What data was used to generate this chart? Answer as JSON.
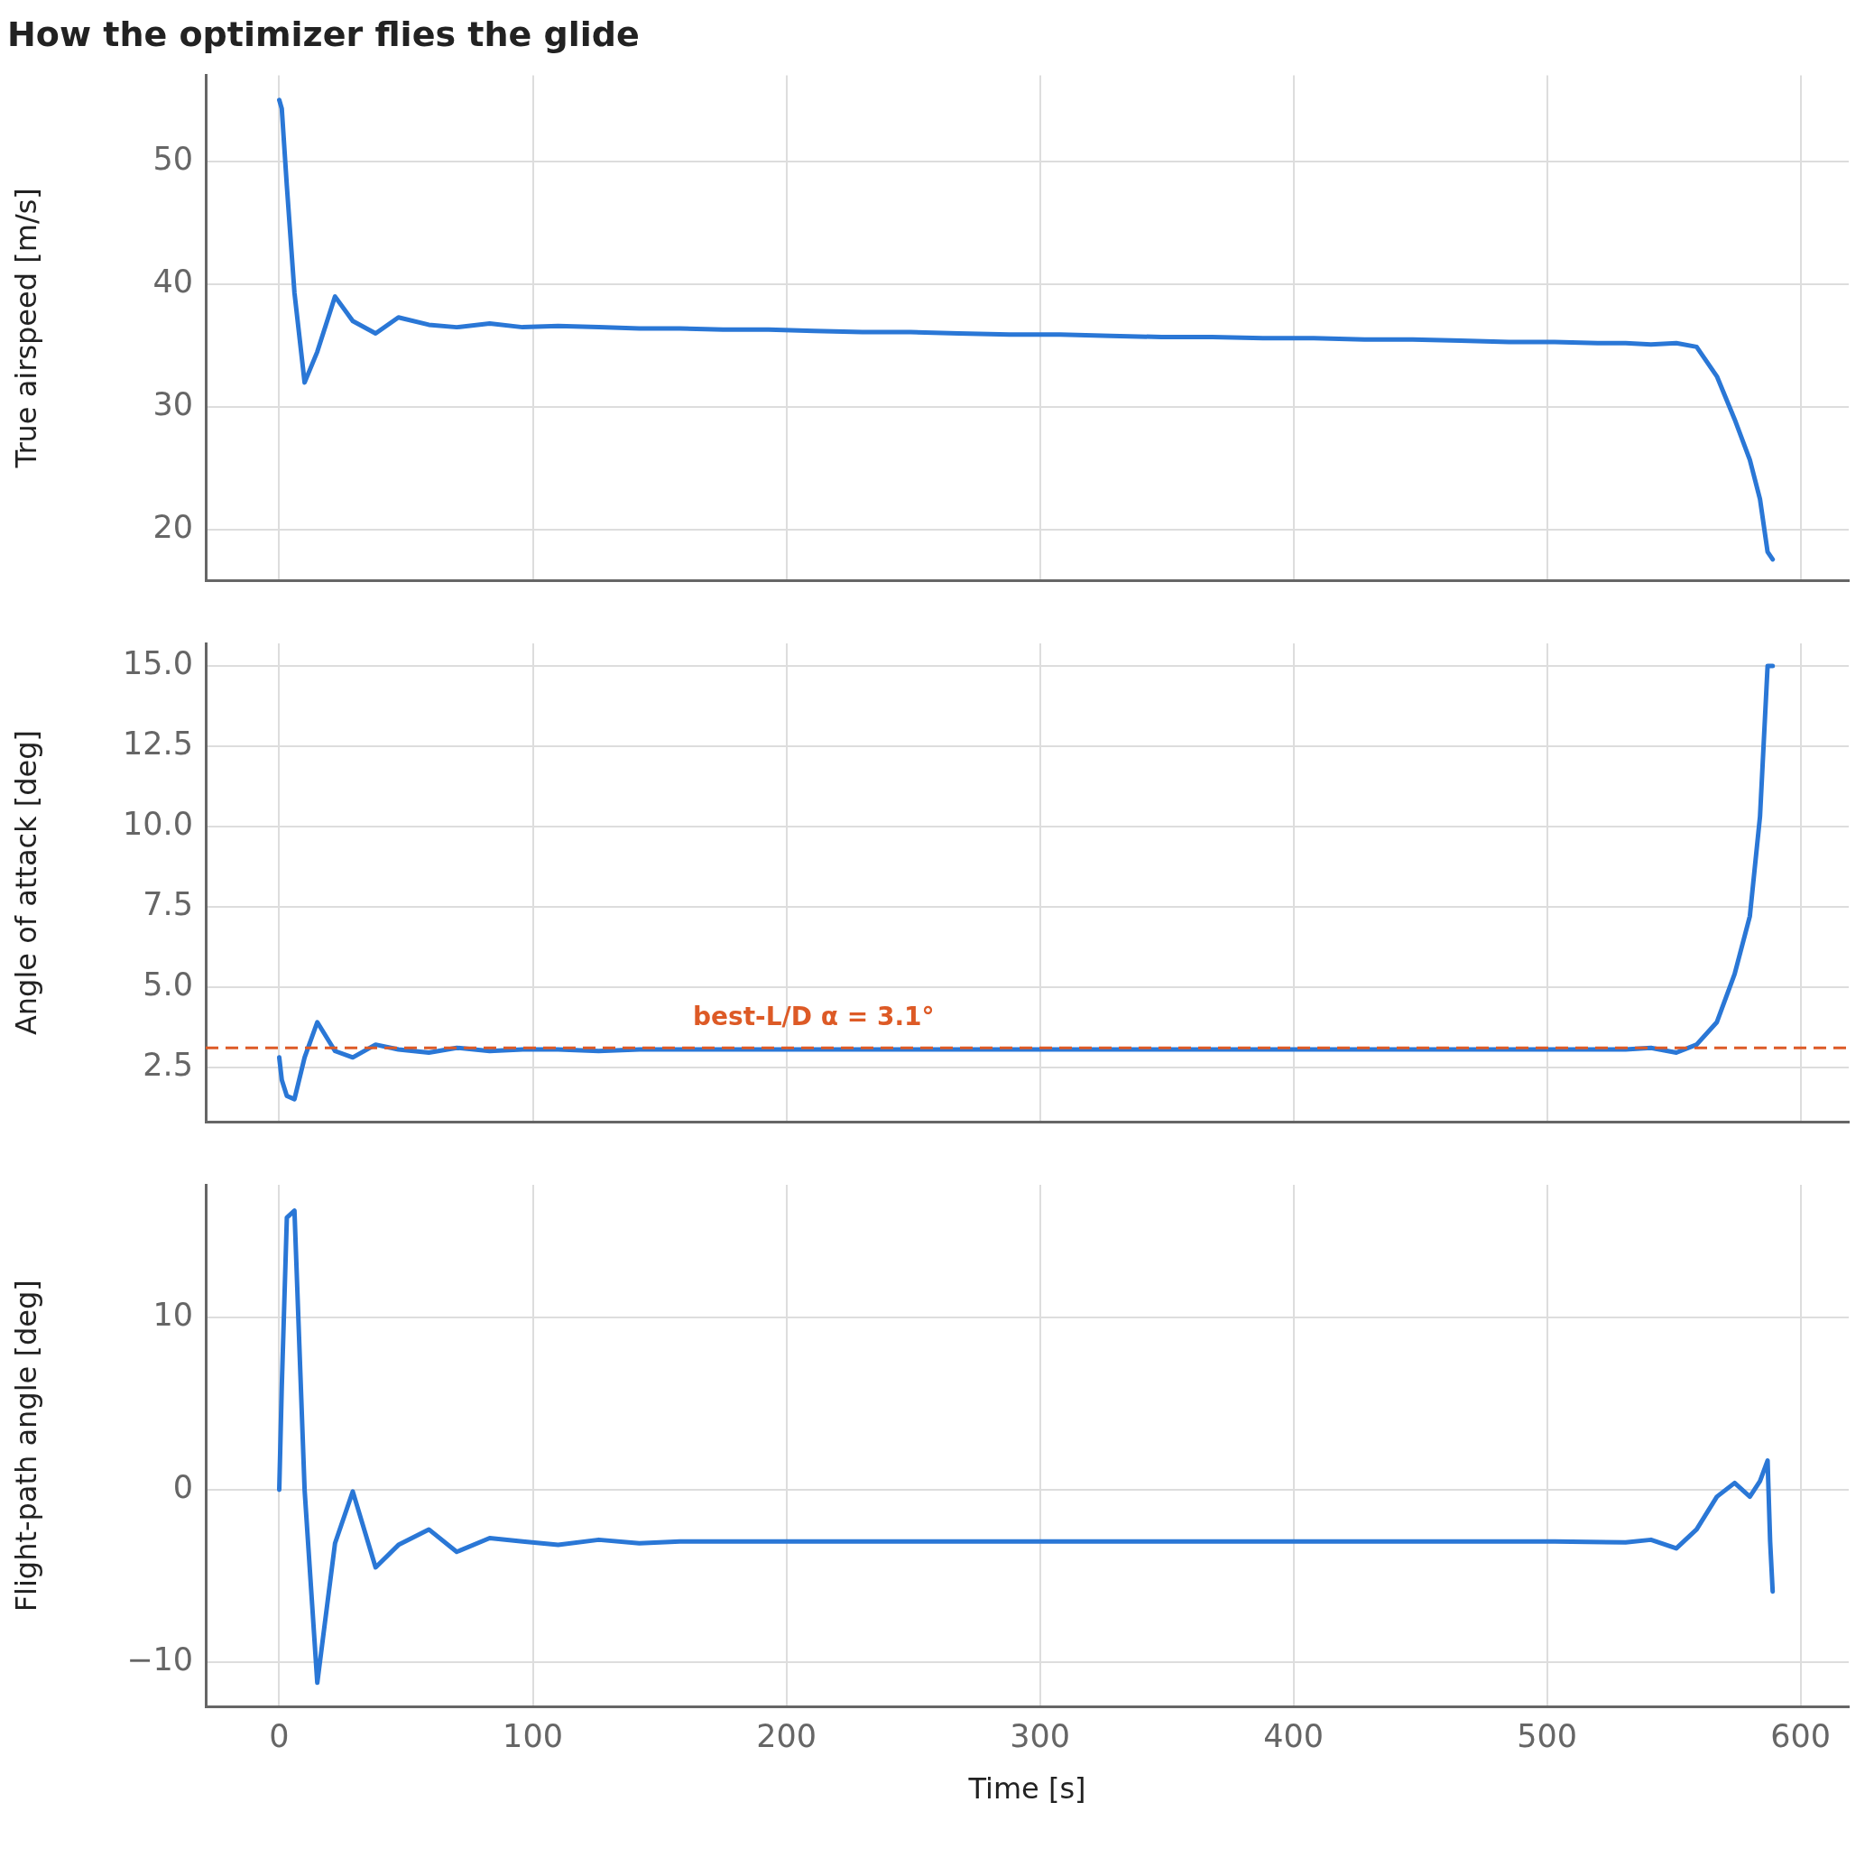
{
  "chart_data": [
    {
      "type": "line",
      "title": "How the optimizer flies the glide",
      "ylabel": "True airspeed [m/s]",
      "tick_labels": "y",
      "grid": true,
      "legend": false,
      "marker": "none",
      "line_style": "solid",
      "x": [
        0,
        1,
        3,
        6,
        10,
        15,
        22,
        29,
        38,
        47,
        59,
        70,
        83,
        96,
        110,
        126,
        142,
        158,
        175,
        193,
        211,
        230,
        249,
        268,
        288,
        308,
        328,
        348,
        368,
        388,
        408,
        428,
        447,
        466,
        485,
        503,
        520,
        531,
        541,
        551,
        559,
        567,
        574,
        580,
        584,
        587,
        589
      ],
      "xlim": [
        -29,
        619
      ],
      "xticks": [
        0,
        100,
        200,
        300,
        400,
        500,
        600
      ],
      "ylim": [
        15.9,
        57
      ],
      "yticks": [
        20,
        30,
        40,
        50
      ],
      "series": [
        {
          "color": "#2a77d6",
          "values": [
            55,
            54.3,
            48,
            39.3,
            32,
            34.5,
            39,
            37,
            36,
            37.3,
            36.7,
            36.5,
            36.8,
            36.5,
            36.6,
            36.5,
            36.4,
            36.4,
            36.3,
            36.3,
            36.2,
            36.1,
            36.1,
            36.0,
            35.9,
            35.9,
            35.8,
            35.7,
            35.7,
            35.6,
            35.6,
            35.5,
            35.5,
            35.4,
            35.3,
            35.3,
            35.2,
            35.2,
            35.1,
            35.2,
            34.9,
            32.5,
            29,
            25.7,
            22.5,
            18.2,
            17.6
          ]
        }
      ]
    },
    {
      "type": "line",
      "ylabel": "Angle of attack [deg]",
      "tick_labels": "y",
      "grid": true,
      "legend": false,
      "marker": "none",
      "line_style": "solid",
      "x": [
        0,
        1,
        3,
        6,
        10,
        15,
        22,
        29,
        38,
        47,
        59,
        70,
        83,
        96,
        110,
        126,
        142,
        158,
        193,
        230,
        268,
        308,
        348,
        388,
        428,
        466,
        503,
        531,
        541,
        551,
        559,
        567,
        574,
        580,
        584,
        587,
        589
      ],
      "xlim": [
        -29,
        619
      ],
      "xticks": [
        0,
        100,
        200,
        300,
        400,
        500,
        600
      ],
      "ylim": [
        0.8,
        15.7
      ],
      "yticks": [
        {
          "value": 2.5,
          "label": "2.5"
        },
        {
          "value": 5,
          "label": "5.0"
        },
        {
          "value": 7.5,
          "label": "7.5"
        },
        {
          "value": 10,
          "label": "10.0"
        },
        {
          "value": 12.5,
          "label": "12.5"
        },
        {
          "value": 15,
          "label": "15.0"
        }
      ],
      "ref_lines": [
        {
          "axis": "y",
          "value": 3.1,
          "label": "best-L/D α = 3.1°",
          "color": "#dd5a26",
          "line_style": "dashed"
        }
      ],
      "series": [
        {
          "color": "#2a77d6",
          "values": [
            2.8,
            2.1,
            1.6,
            1.5,
            2.8,
            3.9,
            3.0,
            2.8,
            3.2,
            3.05,
            2.95,
            3.1,
            3.0,
            3.05,
            3.05,
            3.0,
            3.05,
            3.05,
            3.05,
            3.05,
            3.05,
            3.05,
            3.05,
            3.05,
            3.05,
            3.05,
            3.05,
            3.05,
            3.1,
            2.95,
            3.2,
            3.9,
            5.4,
            7.2,
            10.3,
            15.0,
            15.0
          ]
        }
      ]
    },
    {
      "type": "line",
      "xlabel": "Time [s]",
      "ylabel": "Flight-path angle [deg]",
      "grid": true,
      "legend": false,
      "marker": "none",
      "line_style": "solid",
      "x": [
        0,
        1,
        3,
        6,
        10,
        15,
        22,
        29,
        38,
        47,
        59,
        70,
        83,
        96,
        110,
        126,
        142,
        158,
        193,
        230,
        268,
        308,
        348,
        388,
        428,
        466,
        503,
        531,
        541,
        551,
        559,
        567,
        574,
        580,
        584,
        587,
        588,
        589
      ],
      "xlim": [
        -29,
        619
      ],
      "xticks": [
        0,
        100,
        200,
        300,
        400,
        500,
        600
      ],
      "ylim": [
        -12.6,
        17.7
      ],
      "yticks": [
        {
          "value": -10,
          "label": "−10"
        },
        0,
        10
      ],
      "series": [
        {
          "color": "#2a77d6",
          "values": [
            0,
            6,
            15.8,
            16.2,
            0,
            -11.2,
            -3.1,
            -0.1,
            -4.5,
            -3.2,
            -2.3,
            -3.6,
            -2.8,
            -3.0,
            -3.2,
            -2.9,
            -3.1,
            -3.0,
            -3.0,
            -3.0,
            -3.0,
            -3.0,
            -3.0,
            -3.0,
            -3.0,
            -3.0,
            -3.0,
            -3.05,
            -2.9,
            -3.4,
            -2.3,
            -0.4,
            0.4,
            -0.4,
            0.5,
            1.7,
            -3,
            -5.9
          ]
        }
      ]
    }
  ]
}
